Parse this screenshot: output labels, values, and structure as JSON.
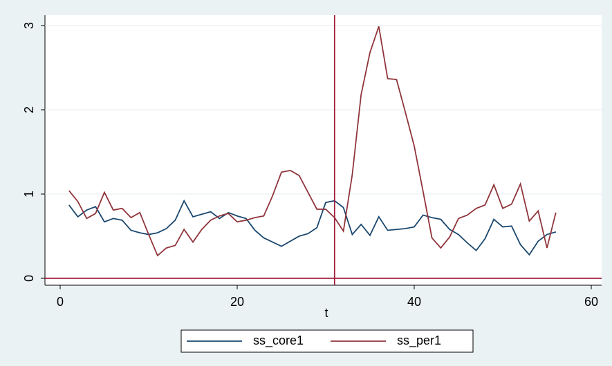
{
  "chart_data": {
    "type": "line",
    "x_label": "t",
    "x": [
      1,
      2,
      3,
      4,
      5,
      6,
      7,
      8,
      9,
      10,
      11,
      12,
      13,
      14,
      15,
      16,
      17,
      18,
      19,
      20,
      21,
      22,
      23,
      24,
      25,
      26,
      27,
      28,
      29,
      30,
      31,
      32,
      33,
      34,
      35,
      36,
      37,
      38,
      39,
      40,
      41,
      42,
      43,
      44,
      45,
      46,
      47,
      48,
      49,
      50,
      51,
      52,
      53,
      54,
      55,
      56
    ],
    "series": [
      {
        "name": "ss_core1",
        "color": "#1a476f",
        "values": [
          0.87,
          0.73,
          0.81,
          0.85,
          0.67,
          0.71,
          0.69,
          0.57,
          0.54,
          0.52,
          0.54,
          0.59,
          0.69,
          0.92,
          0.73,
          0.76,
          0.79,
          0.71,
          0.78,
          0.74,
          0.71,
          0.57,
          0.48,
          0.43,
          0.38,
          0.44,
          0.5,
          0.53,
          0.6,
          0.9,
          0.92,
          0.84,
          0.52,
          0.64,
          0.51,
          0.73,
          0.57,
          0.58,
          0.59,
          0.61,
          0.75,
          0.72,
          0.7,
          0.58,
          0.52,
          0.42,
          0.33,
          0.47,
          0.7,
          0.61,
          0.62,
          0.4,
          0.28,
          0.44,
          0.52,
          0.55
        ]
      },
      {
        "name": "ss_per1",
        "color": "#90353b",
        "values": [
          1.04,
          0.91,
          0.71,
          0.77,
          1.02,
          0.81,
          0.83,
          0.72,
          0.78,
          0.52,
          0.27,
          0.36,
          0.39,
          0.58,
          0.43,
          0.58,
          0.69,
          0.74,
          0.77,
          0.67,
          0.69,
          0.72,
          0.74,
          0.98,
          1.26,
          1.28,
          1.22,
          1.02,
          0.82,
          0.82,
          0.72,
          0.56,
          1.23,
          2.18,
          2.68,
          2.99,
          2.37,
          2.36,
          1.97,
          1.57,
          1.03,
          0.48,
          0.36,
          0.49,
          0.71,
          0.75,
          0.83,
          0.87,
          1.11,
          0.83,
          0.88,
          1.12,
          0.68,
          0.8,
          0.36,
          0.78
        ]
      }
    ],
    "xlim": [
      0,
      60
    ],
    "xticks": [
      0,
      20,
      40,
      60
    ],
    "ylim": [
      0,
      3
    ],
    "yticks": [
      0,
      1,
      2,
      3
    ],
    "grid": true,
    "hline": 0,
    "vline": 31,
    "ref_color": "#a0203a",
    "legend_position": "bottom"
  }
}
